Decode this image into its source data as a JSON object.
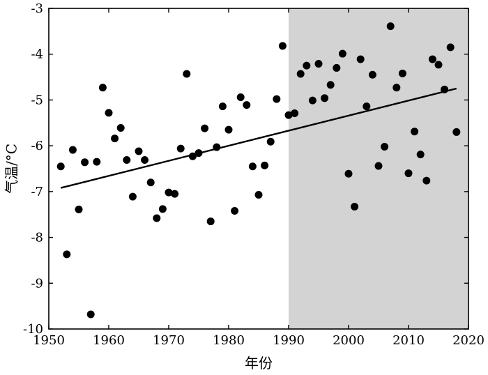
{
  "chart_data": {
    "type": "scatter",
    "xlabel": "年份",
    "ylabel": "气温/°C",
    "xlim": [
      1950,
      2020
    ],
    "ylim": [
      -10,
      -3
    ],
    "xticks": [
      1950,
      1960,
      1970,
      1980,
      1990,
      2000,
      2010,
      2020
    ],
    "yticks": [
      -10,
      -9,
      -8,
      -7,
      -6,
      -5,
      -4,
      -3
    ],
    "grid": false,
    "shaded_region": {
      "x_from": 1990,
      "x_to": 2020,
      "color": "#d3d3d3"
    },
    "trendline": {
      "x": [
        1952,
        2018
      ],
      "y": [
        -6.92,
        -4.75
      ]
    },
    "points": [
      [
        1952,
        -6.45
      ],
      [
        1953,
        -8.37
      ],
      [
        1954,
        -6.09
      ],
      [
        1955,
        -7.39
      ],
      [
        1956,
        -6.36
      ],
      [
        1957,
        -9.68
      ],
      [
        1958,
        -6.35
      ],
      [
        1959,
        -4.73
      ],
      [
        1960,
        -5.28
      ],
      [
        1961,
        -5.84
      ],
      [
        1962,
        -5.61
      ],
      [
        1963,
        -6.31
      ],
      [
        1964,
        -7.11
      ],
      [
        1965,
        -6.12
      ],
      [
        1966,
        -6.31
      ],
      [
        1967,
        -6.8
      ],
      [
        1968,
        -7.58
      ],
      [
        1969,
        -7.38
      ],
      [
        1970,
        -7.02
      ],
      [
        1971,
        -7.05
      ],
      [
        1972,
        -6.06
      ],
      [
        1973,
        -4.43
      ],
      [
        1974,
        -6.23
      ],
      [
        1975,
        -6.16
      ],
      [
        1976,
        -5.62
      ],
      [
        1977,
        -7.65
      ],
      [
        1978,
        -6.03
      ],
      [
        1979,
        -5.14
      ],
      [
        1980,
        -5.65
      ],
      [
        1981,
        -7.42
      ],
      [
        1982,
        -4.94
      ],
      [
        1983,
        -5.11
      ],
      [
        1984,
        -6.45
      ],
      [
        1985,
        -7.07
      ],
      [
        1986,
        -6.43
      ],
      [
        1987,
        -5.91
      ],
      [
        1988,
        -4.98
      ],
      [
        1989,
        -3.82
      ],
      [
        1990,
        -5.33
      ],
      [
        1991,
        -5.29
      ],
      [
        1992,
        -4.43
      ],
      [
        1993,
        -4.25
      ],
      [
        1994,
        -5.01
      ],
      [
        1995,
        -4.21
      ],
      [
        1996,
        -4.96
      ],
      [
        1997,
        -4.67
      ],
      [
        1998,
        -4.3
      ],
      [
        1999,
        -3.99
      ],
      [
        2000,
        -6.61
      ],
      [
        2001,
        -7.33
      ],
      [
        2002,
        -4.11
      ],
      [
        2003,
        -5.14
      ],
      [
        2004,
        -4.45
      ],
      [
        2005,
        -6.44
      ],
      [
        2006,
        -6.02
      ],
      [
        2007,
        -3.39
      ],
      [
        2008,
        -4.73
      ],
      [
        2009,
        -4.42
      ],
      [
        2010,
        -6.6
      ],
      [
        2011,
        -5.69
      ],
      [
        2012,
        -6.19
      ],
      [
        2013,
        -6.76
      ],
      [
        2014,
        -4.11
      ],
      [
        2015,
        -4.23
      ],
      [
        2016,
        -4.77
      ],
      [
        2017,
        -3.85
      ],
      [
        2018,
        -5.7
      ]
    ]
  }
}
